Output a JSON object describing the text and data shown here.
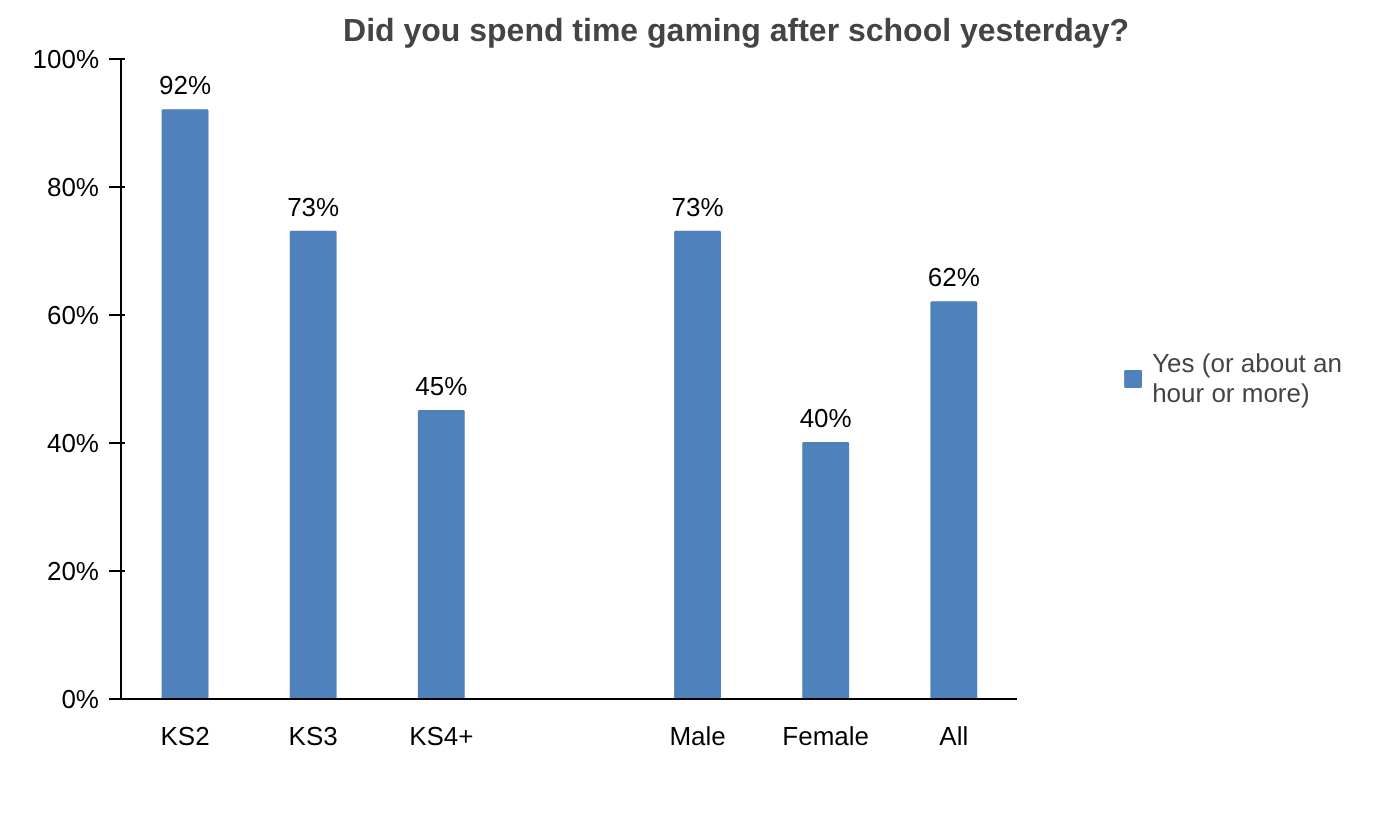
{
  "chart_data": {
    "type": "bar",
    "title": "Did you spend time gaming after school yesterday?",
    "categories": [
      "KS2",
      "KS3",
      "KS4+",
      null,
      "Male",
      "Female",
      "All"
    ],
    "series": [
      {
        "name": "Yes (or about an hour or more)",
        "color": "#4f81bd",
        "values": [
          92,
          73,
          45,
          null,
          73,
          40,
          62
        ]
      }
    ],
    "ylim": [
      0,
      100
    ],
    "yticks": [
      {
        "value": 0,
        "label": "0%"
      },
      {
        "value": 20,
        "label": "20%"
      },
      {
        "value": 40,
        "label": "40%"
      },
      {
        "value": 60,
        "label": "60%"
      },
      {
        "value": 80,
        "label": "80%"
      },
      {
        "value": 100,
        "label": "100%"
      }
    ],
    "value_labels": [
      "92%",
      "73%",
      "45%",
      null,
      "73%",
      "40%",
      "62%"
    ],
    "legend": "right"
  }
}
